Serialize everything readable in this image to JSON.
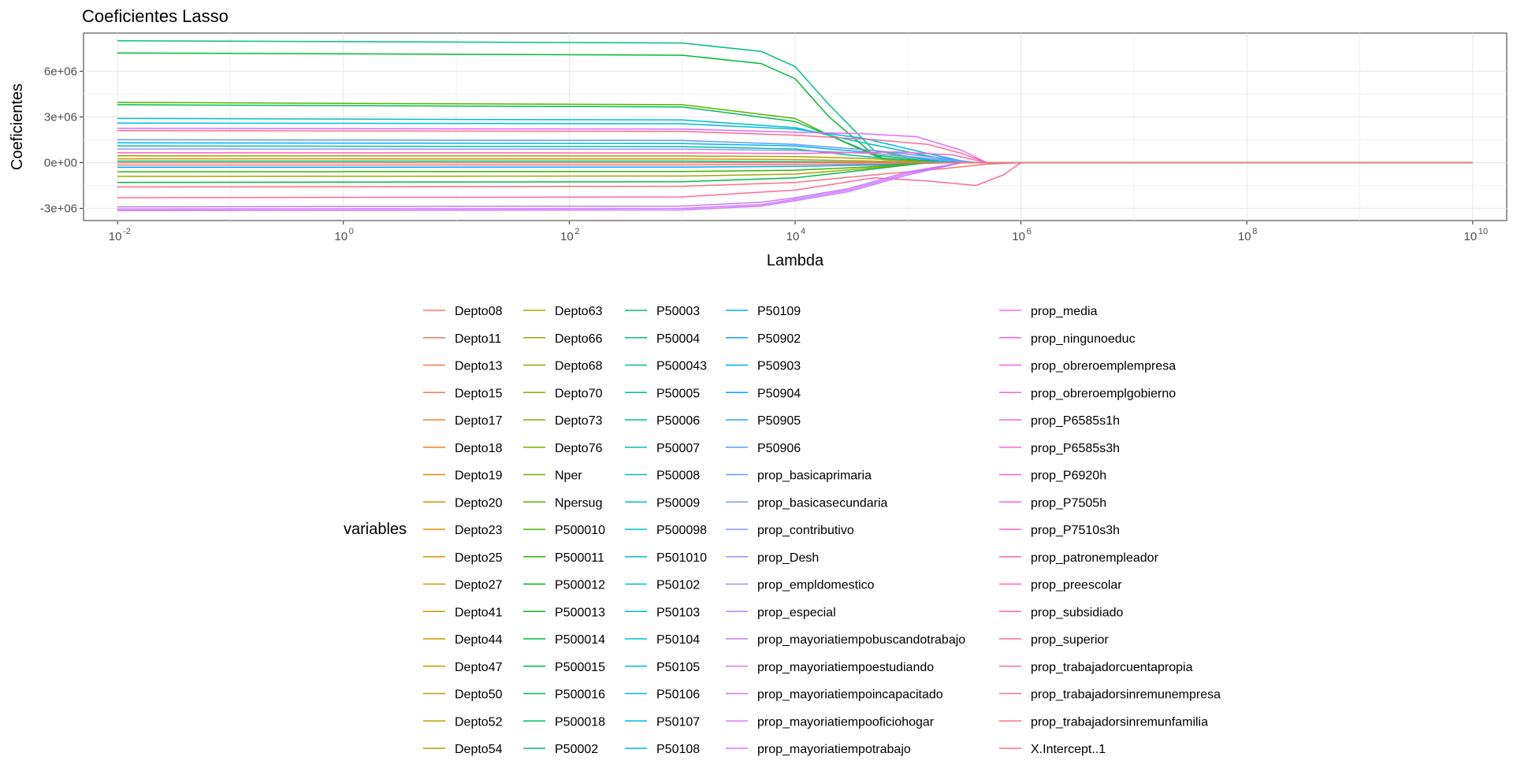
{
  "chart_data": {
    "type": "line",
    "title": "Coeficientes Lasso",
    "xlabel": "Lambda",
    "ylabel": "Coeficientes",
    "x_scale": "log10",
    "xlim": [
      0.005,
      20000000000
    ],
    "ylim": [
      -3800000,
      8500000
    ],
    "x_ticks": [
      {
        "value": 0.01,
        "base": "10",
        "exp": "-2"
      },
      {
        "value": 1,
        "base": "10",
        "exp": "0"
      },
      {
        "value": 100,
        "base": "10",
        "exp": "2"
      },
      {
        "value": 10000,
        "base": "10",
        "exp": "4"
      },
      {
        "value": 1000000,
        "base": "10",
        "exp": "6"
      },
      {
        "value": 100000000,
        "base": "10",
        "exp": "8"
      },
      {
        "value": 10000000000,
        "base": "10",
        "exp": "10"
      }
    ],
    "y_ticks": [
      {
        "value": -3000000,
        "label": "-3e+06"
      },
      {
        "value": 0,
        "label": "0e+00"
      },
      {
        "value": 3000000,
        "label": "3e+06"
      },
      {
        "value": 6000000,
        "label": "6e+06"
      }
    ],
    "grid": true,
    "legend_title": "variables",
    "legend_position": "bottom",
    "series_names": [
      "Depto08",
      "Depto11",
      "Depto13",
      "Depto15",
      "Depto17",
      "Depto18",
      "Depto19",
      "Depto20",
      "Depto23",
      "Depto25",
      "Depto27",
      "Depto41",
      "Depto44",
      "Depto47",
      "Depto50",
      "Depto52",
      "Depto54",
      "Depto63",
      "Depto66",
      "Depto68",
      "Depto70",
      "Depto73",
      "Depto76",
      "Nper",
      "Npersug",
      "P500010",
      "P500011",
      "P500012",
      "P500013",
      "P500014",
      "P500015",
      "P500016",
      "P500018",
      "P50002",
      "P50003",
      "P50004",
      "P500043",
      "P50005",
      "P50006",
      "P50007",
      "P50008",
      "P50009",
      "P500098",
      "P501010",
      "P50102",
      "P50103",
      "P50104",
      "P50105",
      "P50106",
      "P50107",
      "P50108",
      "P50109",
      "P50902",
      "P50903",
      "P50904",
      "P50905",
      "P50906",
      "prop_basicaprimaria",
      "prop_basicasecundaria",
      "prop_contributivo",
      "prop_Desh",
      "prop_empldomestico",
      "prop_especial",
      "prop_mayoriatiempobuscandotrabajo",
      "prop_mayoriatiempoestudiando",
      "prop_mayoriatiempoincapacitado",
      "prop_mayoriatiempooficiohogar",
      "prop_mayoriatiempotrabajo",
      "prop_media",
      "prop_ningunoeduc",
      "prop_obreroemplempresa",
      "prop_obreroemplgobierno",
      "prop_P6585s1h",
      "prop_P6585s3h",
      "prop_P6920h",
      "prop_P7505h",
      "prop_P7510s3h",
      "prop_patronempleador",
      "prop_preescolar",
      "prop_subsidiado",
      "prop_superior",
      "prop_trabajadorcuentapropia",
      "prop_trabajadorsinremunempresa",
      "prop_trabajadorsinremunfamilia",
      "X.Intercept..1"
    ],
    "series": [
      {
        "color": "#00C087",
        "points": [
          [
            0.01,
            8000000
          ],
          [
            1000,
            7850000
          ],
          [
            5000,
            7300000
          ],
          [
            10000,
            6300000
          ],
          [
            20000,
            3800000
          ],
          [
            50000,
            800000
          ],
          [
            200000,
            0
          ],
          [
            10000000000,
            0
          ]
        ]
      },
      {
        "color": "#00BA38",
        "points": [
          [
            0.01,
            7200000
          ],
          [
            1000,
            7050000
          ],
          [
            5000,
            6500000
          ],
          [
            10000,
            5500000
          ],
          [
            20000,
            3000000
          ],
          [
            50000,
            500000
          ],
          [
            200000,
            0
          ],
          [
            10000000000,
            0
          ]
        ]
      },
      {
        "color": "#53B400",
        "points": [
          [
            0.01,
            3950000
          ],
          [
            1000,
            3800000
          ],
          [
            10000,
            2900000
          ],
          [
            20000,
            1800000
          ],
          [
            60000,
            200000
          ],
          [
            200000,
            0
          ],
          [
            10000000000,
            0
          ]
        ]
      },
      {
        "color": "#00BC56",
        "points": [
          [
            0.01,
            3800000
          ],
          [
            1000,
            3650000
          ],
          [
            10000,
            2700000
          ],
          [
            25000,
            1500000
          ],
          [
            60000,
            300000
          ],
          [
            200000,
            0
          ],
          [
            10000000000,
            0
          ]
        ]
      },
      {
        "color": "#00BFC4",
        "points": [
          [
            0.01,
            2900000
          ],
          [
            1000,
            2800000
          ],
          [
            10000,
            2300000
          ],
          [
            30000,
            1500000
          ],
          [
            100000,
            700000
          ],
          [
            300000,
            0
          ],
          [
            10000000000,
            0
          ]
        ]
      },
      {
        "color": "#00B8E5",
        "points": [
          [
            0.01,
            2600000
          ],
          [
            1000,
            2550000
          ],
          [
            10000,
            2200000
          ],
          [
            40000,
            1600000
          ],
          [
            150000,
            600000
          ],
          [
            350000,
            0
          ],
          [
            10000000000,
            0
          ]
        ]
      },
      {
        "color": "#FF6C91",
        "points": [
          [
            0.01,
            2100000
          ],
          [
            1000,
            2050000
          ],
          [
            10000,
            1800000
          ],
          [
            50000,
            1500000
          ],
          [
            150000,
            1200000
          ],
          [
            300000,
            600000
          ],
          [
            500000,
            0
          ],
          [
            10000000000,
            0
          ]
        ]
      },
      {
        "color": "#E76BF3",
        "points": [
          [
            0.01,
            2250000
          ],
          [
            1000,
            2200000
          ],
          [
            10000,
            2000000
          ],
          [
            40000,
            1900000
          ],
          [
            120000,
            1700000
          ],
          [
            300000,
            800000
          ],
          [
            500000,
            0
          ],
          [
            10000000000,
            0
          ]
        ]
      },
      {
        "color": "#619CFF",
        "points": [
          [
            0.01,
            1500000
          ],
          [
            1000,
            1450000
          ],
          [
            10000,
            1200000
          ],
          [
            50000,
            800000
          ],
          [
            200000,
            300000
          ],
          [
            400000,
            0
          ],
          [
            10000000000,
            0
          ]
        ]
      },
      {
        "color": "#00B0F6",
        "points": [
          [
            0.01,
            1300000
          ],
          [
            1000,
            1250000
          ],
          [
            10000,
            1100000
          ],
          [
            40000,
            700000
          ],
          [
            150000,
            200000
          ],
          [
            300000,
            0
          ],
          [
            10000000000,
            0
          ]
        ]
      },
      {
        "color": "#00C1A3",
        "points": [
          [
            0.01,
            1100000
          ],
          [
            1000,
            1050000
          ],
          [
            10000,
            900000
          ],
          [
            30000,
            500000
          ],
          [
            100000,
            150000
          ],
          [
            250000,
            0
          ],
          [
            10000000000,
            0
          ]
        ]
      },
      {
        "color": "#9590FF",
        "points": [
          [
            0.01,
            900000
          ],
          [
            1000,
            880000
          ],
          [
            10000,
            800000
          ],
          [
            50000,
            600000
          ],
          [
            200000,
            200000
          ],
          [
            400000,
            0
          ],
          [
            10000000000,
            0
          ]
        ]
      },
      {
        "color": "#FF62BC",
        "points": [
          [
            0.01,
            650000
          ],
          [
            1000,
            640000
          ],
          [
            10000,
            600000
          ],
          [
            80000,
            700000
          ],
          [
            250000,
            500000
          ],
          [
            500000,
            0
          ],
          [
            10000000000,
            0
          ]
        ]
      },
      {
        "color": "#A3A500",
        "points": [
          [
            0.01,
            450000
          ],
          [
            1000,
            440000
          ],
          [
            10000,
            400000
          ],
          [
            50000,
            250000
          ],
          [
            200000,
            0
          ],
          [
            10000000000,
            0
          ]
        ]
      },
      {
        "color": "#D89000",
        "points": [
          [
            0.01,
            250000
          ],
          [
            1000,
            240000
          ],
          [
            10000,
            200000
          ],
          [
            50000,
            100000
          ],
          [
            150000,
            0
          ],
          [
            10000000000,
            0
          ]
        ]
      },
      {
        "color": "#F8766D",
        "points": [
          [
            0.01,
            -150000
          ],
          [
            1000,
            -150000
          ],
          [
            10000,
            -120000
          ],
          [
            80000,
            -80000
          ],
          [
            300000,
            0
          ],
          [
            10000000000,
            0
          ]
        ]
      },
      {
        "color": "#00A9FF",
        "points": [
          [
            0.01,
            -300000
          ],
          [
            1000,
            -290000
          ],
          [
            10000,
            -250000
          ],
          [
            50000,
            -150000
          ],
          [
            200000,
            0
          ],
          [
            10000000000,
            0
          ]
        ]
      },
      {
        "color": "#39B600",
        "points": [
          [
            0.01,
            -600000
          ],
          [
            1000,
            -580000
          ],
          [
            10000,
            -500000
          ],
          [
            40000,
            -300000
          ],
          [
            150000,
            0
          ],
          [
            10000000000,
            0
          ]
        ]
      },
      {
        "color": "#9DA700",
        "points": [
          [
            0.01,
            -900000
          ],
          [
            1000,
            -880000
          ],
          [
            10000,
            -750000
          ],
          [
            40000,
            -400000
          ],
          [
            150000,
            0
          ],
          [
            10000000000,
            0
          ]
        ]
      },
      {
        "color": "#00BB4E",
        "points": [
          [
            0.01,
            -1300000
          ],
          [
            1000,
            -1250000
          ],
          [
            10000,
            -1000000
          ],
          [
            40000,
            -500000
          ],
          [
            150000,
            0
          ],
          [
            10000000000,
            0
          ]
        ]
      },
      {
        "color": "#FC717F",
        "points": [
          [
            0.01,
            -1600000
          ],
          [
            1000,
            -1550000
          ],
          [
            10000,
            -1300000
          ],
          [
            50000,
            -800000
          ],
          [
            200000,
            -400000
          ],
          [
            500000,
            -100000
          ],
          [
            1000000,
            0
          ],
          [
            10000000000,
            0
          ]
        ]
      },
      {
        "color": "#FF6A98",
        "points": [
          [
            0.01,
            -2300000
          ],
          [
            1000,
            -2250000
          ],
          [
            10000,
            -1800000
          ],
          [
            50000,
            -1000000
          ],
          [
            150000,
            -1200000
          ],
          [
            400000,
            -1500000
          ],
          [
            700000,
            -800000
          ],
          [
            1000000,
            0
          ],
          [
            10000000000,
            0
          ]
        ]
      },
      {
        "color": "#B983FF",
        "points": [
          [
            0.01,
            -2900000
          ],
          [
            1000,
            -2850000
          ],
          [
            5000,
            -2600000
          ],
          [
            10000,
            -2300000
          ],
          [
            30000,
            -1700000
          ],
          [
            100000,
            -600000
          ],
          [
            300000,
            0
          ],
          [
            10000000000,
            0
          ]
        ]
      },
      {
        "color": "#DB72FB",
        "points": [
          [
            0.01,
            -3050000
          ],
          [
            1000,
            -3000000
          ],
          [
            5000,
            -2750000
          ],
          [
            10000,
            -2400000
          ],
          [
            30000,
            -1800000
          ],
          [
            100000,
            -700000
          ],
          [
            300000,
            0
          ],
          [
            10000000000,
            0
          ]
        ]
      },
      {
        "color": "#C77CFF",
        "points": [
          [
            0.01,
            -3150000
          ],
          [
            1000,
            -3100000
          ],
          [
            5000,
            -2850000
          ],
          [
            10000,
            -2500000
          ],
          [
            30000,
            -1900000
          ],
          [
            100000,
            -800000
          ],
          [
            300000,
            0
          ],
          [
            10000000000,
            0
          ]
        ]
      },
      {
        "color": "#00BF7D",
        "points": [
          [
            0.01,
            100000
          ],
          [
            1000,
            100000
          ],
          [
            20000,
            50000
          ],
          [
            100000,
            0
          ],
          [
            10000000000,
            0
          ]
        ]
      },
      {
        "color": "#F8766D",
        "points": [
          [
            0.01,
            0
          ],
          [
            10000000000,
            0
          ]
        ]
      }
    ]
  }
}
